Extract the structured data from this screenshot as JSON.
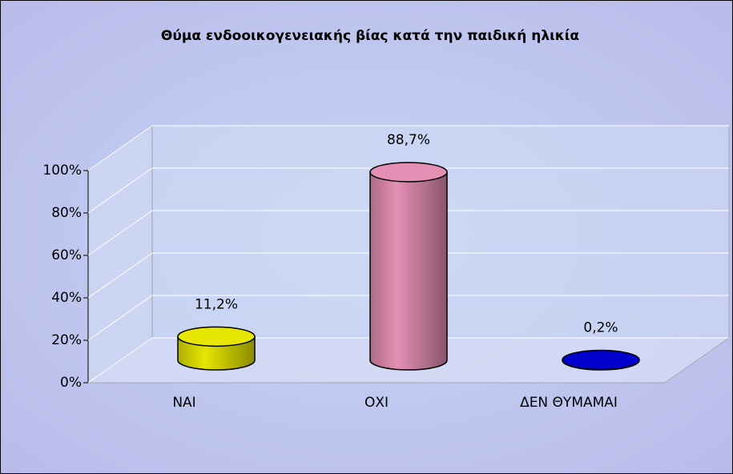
{
  "chart_data": {
    "type": "bar",
    "title": "Θύμα ενδοοικογενειακής βίας κατά την παιδική ηλικία",
    "categories": [
      "ΝΑΙ",
      "ΟΧΙ",
      "ΔΕΝ ΘΥΜΑΜΑΙ"
    ],
    "values": [
      11.2,
      88.7,
      0.2
    ],
    "value_labels": [
      "11,2%",
      "88,7%",
      "0,2%"
    ],
    "colors": [
      "#e6e600",
      "#e58fb4",
      "#0000cc"
    ],
    "ylim": [
      0,
      100
    ],
    "yticks": [
      {
        "value": 0,
        "label": "0%"
      },
      {
        "value": 20,
        "label": "20%"
      },
      {
        "value": 40,
        "label": "40%"
      },
      {
        "value": 60,
        "label": "60%"
      },
      {
        "value": 80,
        "label": "80%"
      },
      {
        "value": 100,
        "label": "100%"
      }
    ],
    "grid": true
  }
}
